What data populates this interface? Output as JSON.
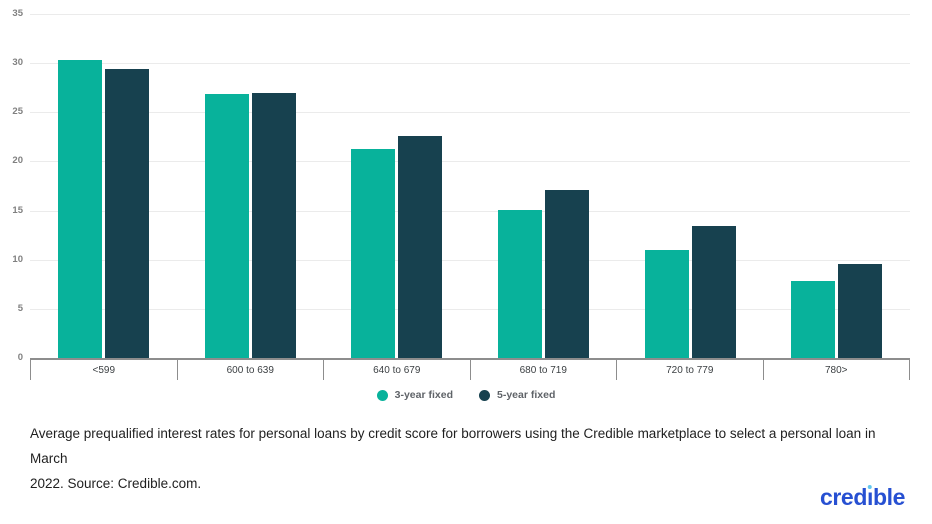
{
  "chart_data": {
    "type": "bar",
    "title": "",
    "categories": [
      "<599",
      "600 to 639",
      "640 to 679",
      "680 to 719",
      "720 to 779",
      "780>"
    ],
    "series": [
      {
        "name": "3-year fixed",
        "color": "#08b29b",
        "values": [
          30.4,
          27.0,
          21.4,
          15.2,
          11.1,
          7.9
        ]
      },
      {
        "name": "5-year fixed",
        "color": "#17414f",
        "values": [
          29.5,
          27.1,
          22.7,
          17.2,
          13.5,
          9.7
        ]
      }
    ],
    "xlabel": "",
    "ylabel": "",
    "y_ticks": [
      0,
      5,
      10,
      15,
      20,
      25,
      30,
      35
    ],
    "ylim": [
      0,
      35
    ],
    "grid": "horizontal",
    "legend_position": "bottom-center"
  },
  "caption": {
    "line1": "Average prequalified interest rates for personal loans by credit score for borrowers using the Credible marketplace to select a personal loan in March",
    "line2": "2022. Source: Credible.com."
  },
  "footer": {
    "logo_text": "credible"
  },
  "colors": {
    "series_1": "#08b29b",
    "series_2": "#17414f",
    "gridline": "#ebebeb",
    "axis": "#8d8d8d",
    "logo_blue": "#2750d2",
    "logo_dot": "#62c7ef"
  }
}
